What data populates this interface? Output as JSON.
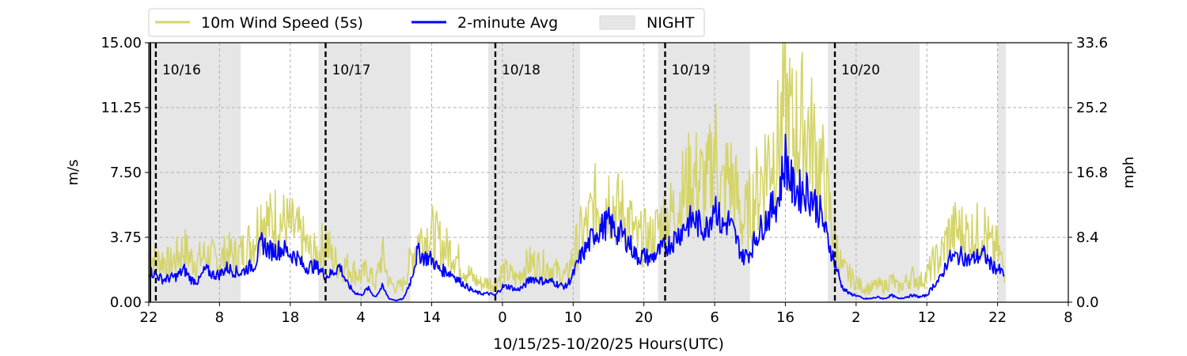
{
  "chart_data": {
    "type": "line",
    "title": "",
    "xlabel": "10/15/25-10/20/25  Hours(UTC)",
    "ylabel_left": "m/s",
    "ylabel_right": "mph",
    "x_unit": "hours since 10/15/25 22:00 UTC",
    "xlim": [
      0,
      130
    ],
    "ylim": [
      0,
      15
    ],
    "y_ticks": [
      "0.00",
      "3.75",
      "7.50",
      "11.25",
      "15.00"
    ],
    "y_right_ticks": [
      "0.0",
      "8.4",
      "16.8",
      "25.2",
      "33.6"
    ],
    "x_ticks": [
      {
        "x": 0,
        "label": "22"
      },
      {
        "x": 10,
        "label": "8"
      },
      {
        "x": 20,
        "label": "18"
      },
      {
        "x": 30,
        "label": "4"
      },
      {
        "x": 40,
        "label": "14"
      },
      {
        "x": 50,
        "label": "0"
      },
      {
        "x": 60,
        "label": "10"
      },
      {
        "x": 70,
        "label": "20"
      },
      {
        "x": 80,
        "label": "6"
      },
      {
        "x": 90,
        "label": "16"
      },
      {
        "x": 100,
        "label": "2"
      },
      {
        "x": 110,
        "label": "12"
      },
      {
        "x": 120,
        "label": "22"
      },
      {
        "x": 130,
        "label": "8"
      }
    ],
    "grid": true,
    "legend_position": "top-left, above plot",
    "legend": [
      {
        "label": "10m Wind Speed (5s)",
        "kind": "line",
        "color": "#d4d46a"
      },
      {
        "label": "2-minute Avg",
        "kind": "line",
        "color": "#0000ff"
      },
      {
        "label": "NIGHT",
        "kind": "patch",
        "color": "#e6e6e6"
      }
    ],
    "night_periods": [
      [
        0,
        13
      ],
      [
        24,
        37
      ],
      [
        48,
        61
      ],
      [
        72,
        85
      ],
      [
        96,
        109
      ],
      [
        120,
        121.2
      ]
    ],
    "day_markers": [
      {
        "x": 1,
        "label": "10/16"
      },
      {
        "x": 25,
        "label": "10/17"
      },
      {
        "x": 49,
        "label": "10/18"
      },
      {
        "x": 73,
        "label": "10/19"
      },
      {
        "x": 97,
        "label": "10/20"
      }
    ],
    "series": [
      {
        "name": "10m Wind Speed (5s)",
        "color": "#d4d46a",
        "x": [
          0,
          1,
          2,
          3,
          4,
          5,
          6,
          7,
          8,
          9,
          10,
          11,
          12,
          13,
          14,
          15,
          16,
          17,
          18,
          19,
          20,
          21,
          22,
          23,
          24,
          25,
          26,
          27,
          28,
          29,
          30,
          31,
          32,
          33,
          34,
          35,
          36,
          37,
          38,
          39,
          40,
          41,
          42,
          43,
          44,
          45,
          46,
          47,
          48,
          49,
          50,
          51,
          52,
          53,
          54,
          55,
          56,
          57,
          58,
          59,
          60,
          61,
          62,
          63,
          64,
          65,
          66,
          67,
          68,
          69,
          70,
          71,
          72,
          73,
          74,
          75,
          76,
          77,
          78,
          79,
          80,
          81,
          82,
          83,
          84,
          85,
          86,
          87,
          88,
          89,
          90,
          91,
          92,
          93,
          94,
          95,
          96,
          97,
          98,
          99,
          100,
          101,
          102,
          103,
          104,
          105,
          106,
          107,
          108,
          109,
          110,
          111,
          112,
          113,
          114,
          115,
          116,
          117,
          118,
          119,
          120,
          121
        ],
        "values": [
          3.5,
          2.8,
          3.0,
          2.6,
          3.2,
          3.8,
          3.0,
          2.9,
          3.3,
          3.1,
          2.8,
          3.5,
          3.2,
          3.4,
          4.0,
          4.6,
          6.4,
          5.4,
          5.9,
          5.5,
          5.2,
          4.8,
          4.1,
          3.3,
          3.4,
          4.4,
          3.0,
          2.6,
          2.5,
          2.2,
          1.8,
          2.3,
          1.2,
          3.4,
          1.4,
          1.0,
          1.3,
          2.9,
          4.4,
          4.6,
          4.8,
          4.2,
          3.7,
          3.6,
          2.7,
          2.1,
          1.6,
          1.3,
          1.4,
          1.2,
          2.2,
          2.0,
          1.6,
          2.4,
          2.8,
          2.6,
          2.5,
          2.4,
          2.0,
          1.8,
          3.2,
          4.6,
          5.3,
          6.7,
          6.8,
          7.6,
          6.5,
          6.2,
          5.7,
          4.2,
          4.6,
          4.3,
          5.2,
          5.8,
          6.2,
          7.0,
          8.1,
          8.7,
          8.4,
          8.0,
          11.0,
          7.5,
          9.0,
          7.5,
          5.5,
          6.5,
          7.8,
          9.3,
          10.6,
          11.0,
          14.0,
          11.8,
          12.3,
          12.3,
          10.8,
          9.5,
          7.0,
          4.5,
          2.3,
          1.9,
          1.4,
          1.0,
          1.0,
          1.2,
          1.1,
          1.6,
          1.0,
          1.4,
          1.8,
          1.4,
          1.9,
          2.8,
          3.2,
          4.6,
          5.0,
          4.9,
          4.6,
          4.8,
          5.3,
          3.8,
          3.7,
          2.2
        ]
      },
      {
        "name": "2-minute Avg",
        "color": "#0000ff",
        "x": [
          0,
          1,
          2,
          3,
          4,
          5,
          6,
          7,
          8,
          9,
          10,
          11,
          12,
          13,
          14,
          15,
          16,
          17,
          18,
          19,
          20,
          21,
          22,
          23,
          24,
          25,
          26,
          27,
          28,
          29,
          30,
          31,
          32,
          33,
          34,
          35,
          36,
          37,
          38,
          39,
          40,
          41,
          42,
          43,
          44,
          45,
          46,
          47,
          48,
          49,
          50,
          51,
          52,
          53,
          54,
          55,
          56,
          57,
          58,
          59,
          60,
          61,
          62,
          63,
          64,
          65,
          66,
          67,
          68,
          69,
          70,
          71,
          72,
          73,
          74,
          75,
          76,
          77,
          78,
          79,
          80,
          81,
          82,
          83,
          84,
          85,
          86,
          87,
          88,
          89,
          90,
          91,
          92,
          93,
          94,
          95,
          96,
          97,
          98,
          99,
          100,
          101,
          102,
          103,
          104,
          105,
          106,
          107,
          108,
          109,
          110,
          111,
          112,
          113,
          114,
          115,
          116,
          117,
          118,
          119,
          120,
          121
        ],
        "values": [
          1.8,
          1.6,
          1.3,
          1.4,
          1.5,
          1.9,
          1.3,
          1.2,
          1.9,
          1.6,
          1.6,
          2.0,
          1.8,
          1.7,
          2.0,
          2.2,
          3.5,
          3.0,
          3.0,
          3.1,
          2.8,
          2.6,
          2.0,
          2.1,
          2.0,
          1.5,
          1.7,
          2.1,
          1.1,
          0.6,
          0.4,
          0.8,
          0.3,
          0.9,
          0.2,
          0.1,
          0.2,
          1.2,
          2.9,
          2.6,
          2.5,
          1.9,
          1.8,
          1.6,
          1.2,
          0.9,
          0.6,
          0.5,
          0.5,
          0.4,
          0.9,
          0.9,
          0.7,
          0.9,
          1.4,
          1.3,
          1.2,
          1.2,
          1.0,
          0.9,
          1.6,
          2.6,
          3.2,
          4.0,
          4.3,
          4.6,
          4.1,
          3.9,
          3.4,
          2.6,
          2.7,
          2.5,
          2.9,
          3.2,
          3.5,
          4.0,
          4.5,
          4.8,
          4.4,
          4.3,
          5.9,
          4.3,
          4.7,
          3.7,
          2.6,
          2.9,
          3.9,
          4.6,
          5.3,
          6.0,
          8.4,
          6.6,
          6.4,
          6.5,
          5.9,
          5.1,
          3.6,
          2.3,
          0.9,
          0.5,
          0.4,
          0.2,
          0.2,
          0.3,
          0.2,
          0.4,
          0.2,
          0.3,
          0.4,
          0.3,
          0.4,
          1.0,
          1.4,
          2.5,
          2.6,
          2.7,
          2.4,
          2.6,
          2.8,
          2.2,
          1.9,
          1.6
        ]
      }
    ]
  }
}
